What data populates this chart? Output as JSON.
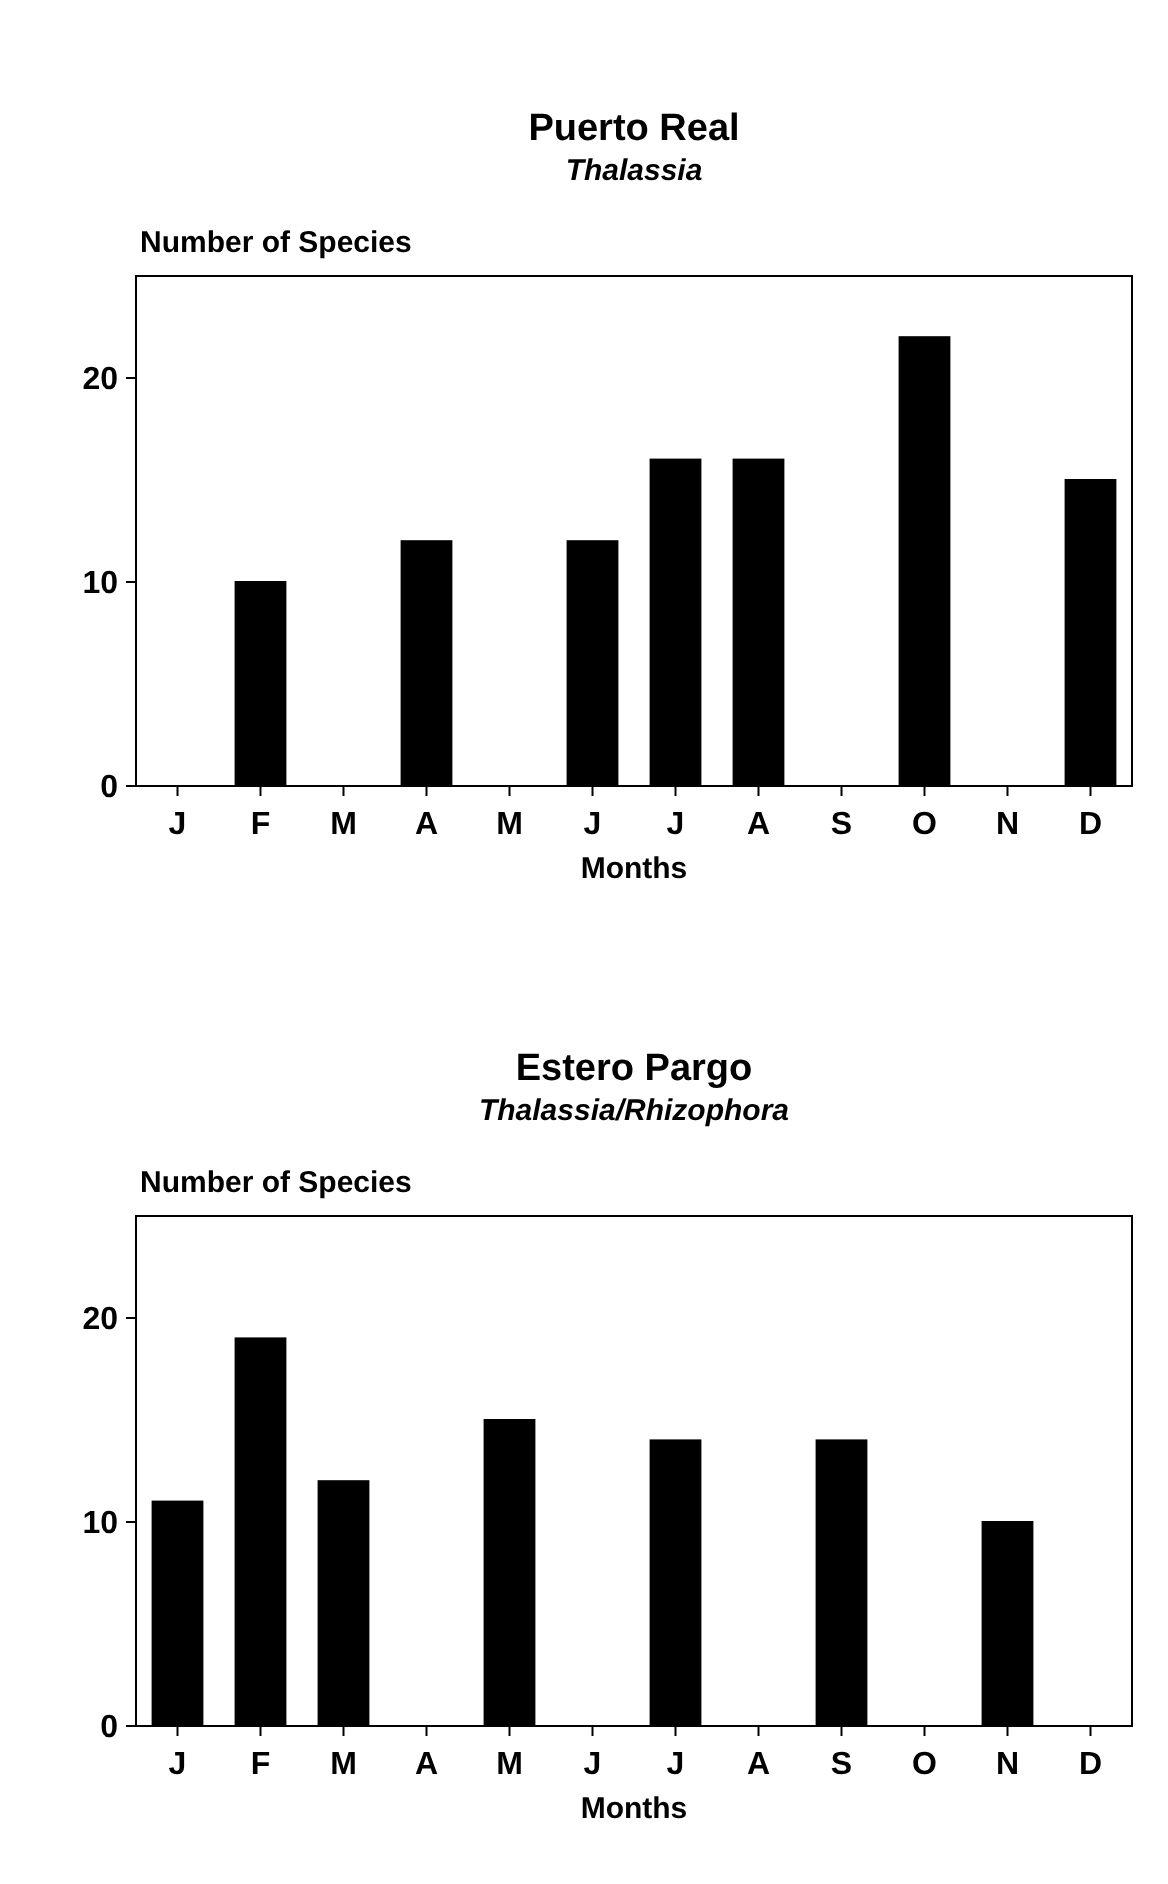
{
  "chart_data": [
    {
      "type": "bar",
      "title": "Puerto Real",
      "subtitle": "Thalassia",
      "ylabel": "Number of Species",
      "xlabel": "Months",
      "categories": [
        "J",
        "F",
        "M",
        "A",
        "M",
        "J",
        "J",
        "A",
        "S",
        "O",
        "N",
        "D"
      ],
      "values": [
        null,
        10,
        null,
        12,
        null,
        12,
        16,
        16,
        null,
        22,
        null,
        15
      ],
      "color": "#000000",
      "ylim": [
        0,
        25
      ],
      "yticks": [
        0,
        10,
        20
      ],
      "grid": false
    },
    {
      "type": "bar",
      "title": "Estero Pargo",
      "subtitle": "Thalassia/Rhizophora",
      "ylabel": "Number of Species",
      "xlabel": "Months",
      "categories": [
        "J",
        "F",
        "M",
        "A",
        "M",
        "J",
        "J",
        "A",
        "S",
        "O",
        "N",
        "D"
      ],
      "values": [
        11,
        19,
        12,
        null,
        15,
        null,
        14,
        null,
        14,
        null,
        10,
        null
      ],
      "color": "#000000",
      "ylim": [
        0,
        25
      ],
      "yticks": [
        0,
        10,
        20
      ],
      "grid": false
    }
  ]
}
